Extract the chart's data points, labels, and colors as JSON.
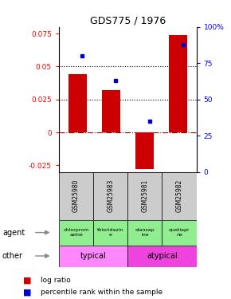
{
  "title": "GDS775 / 1976",
  "samples": [
    "GSM25980",
    "GSM25983",
    "GSM25981",
    "GSM25982"
  ],
  "log_ratios": [
    0.044,
    0.032,
    -0.028,
    0.074
  ],
  "percentile_ranks": [
    80,
    63,
    35,
    88
  ],
  "agents": [
    "chlorprom\nazine",
    "thioridazin\ne",
    "olanzap\nine",
    "quetiapi\nne"
  ],
  "other_labels": [
    "typical",
    "atypical"
  ],
  "bar_color": "#CC0000",
  "dot_color": "#0000CC",
  "ylim_left": [
    -0.03,
    0.08
  ],
  "ylim_right": [
    0,
    100
  ],
  "yticks_left": [
    -0.025,
    0,
    0.025,
    0.05,
    0.075
  ],
  "yticks_right": [
    0,
    25,
    50,
    75,
    100
  ],
  "hlines": [
    0.025,
    0.05
  ],
  "green": "#90EE90",
  "pink_typical": "#FF88FF",
  "pink_atypical": "#EE44DD",
  "gsm_bg": "#CCCCCC",
  "background_color": "#ffffff"
}
